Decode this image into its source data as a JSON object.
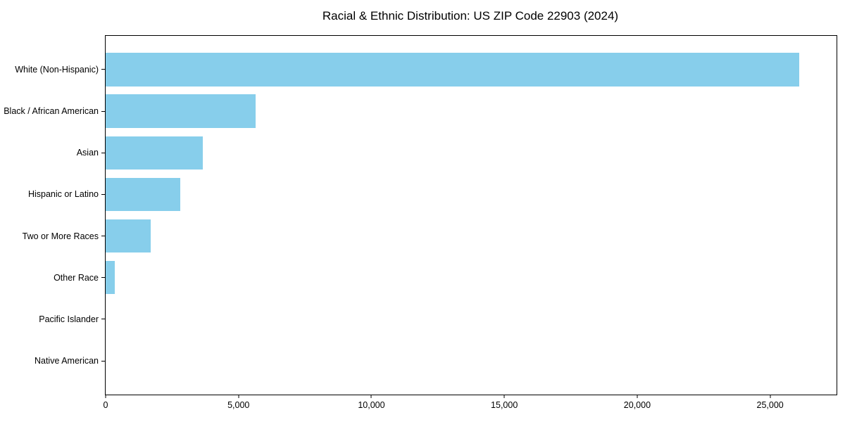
{
  "chart_data": {
    "type": "bar",
    "orientation": "horizontal",
    "title": "Racial & Ethnic Distribution: US ZIP Code 22903 (2024)",
    "categories": [
      "White (Non-Hispanic)",
      "Black / African American",
      "Asian",
      "Hispanic or Latino",
      "Two or More Races",
      "Other Race",
      "Pacific Islander",
      "Native American"
    ],
    "values": [
      26100,
      5630,
      3660,
      2820,
      1700,
      350,
      0,
      0
    ],
    "xlabel": "",
    "ylabel": "",
    "xlim": [
      0,
      27500
    ],
    "xticks": [
      0,
      5000,
      10000,
      15000,
      20000,
      25000
    ],
    "xtick_labels": [
      "0",
      "5,000",
      "10,000",
      "15,000",
      "20,000",
      "25,000"
    ],
    "bar_color": "#87CEEB",
    "bar_height_fraction": 0.8,
    "y_end_padding_units": 0.81,
    "grid": false,
    "legend_position": "none",
    "axis_color": "#000000",
    "background_color": "#FFFFFF"
  }
}
